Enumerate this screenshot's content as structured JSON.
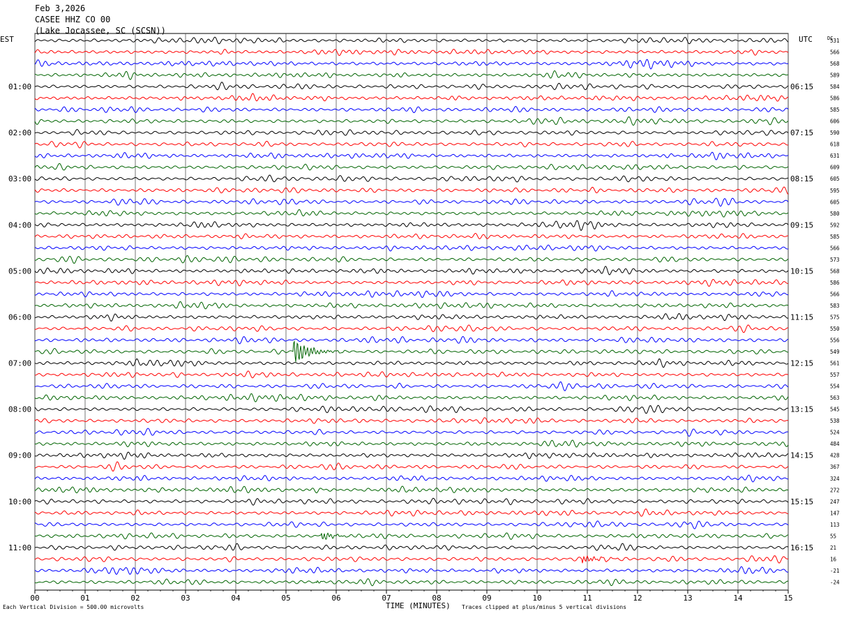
{
  "header": {
    "date": "Feb 3,2026",
    "station": "CASEE HHZ CO 00",
    "location": "(Lake Jocassee, SC (SCSN))"
  },
  "chart_data": {
    "type": "line",
    "title": "Feb 3,2026",
    "xlabel": "TIME (MINUTES)",
    "left_axis_label": "EST",
    "right_axis_label": "UTC",
    "dc_label": "DC",
    "xlim": [
      0,
      15
    ],
    "x_ticks": [
      "00",
      "01",
      "02",
      "03",
      "04",
      "05",
      "06",
      "07",
      "08",
      "09",
      "10",
      "11",
      "12",
      "13",
      "14",
      "15"
    ],
    "grid": true,
    "trace_colors": [
      "#000000",
      "#ff0000",
      "#0000ff",
      "#006400"
    ],
    "est_hour_labels": [
      "01:00",
      "02:00",
      "03:00",
      "04:00",
      "05:00",
      "06:00",
      "07:00",
      "08:00",
      "09:00",
      "10:00",
      "11:00"
    ],
    "utc_hour_labels": [
      "06:15",
      "07:15",
      "08:15",
      "09:15",
      "10:15",
      "11:15",
      "12:15",
      "13:15",
      "14:15",
      "15:15",
      "16:15"
    ],
    "dc_offsets": [
      531,
      566,
      568,
      589,
      584,
      586,
      585,
      606,
      590,
      618,
      631,
      609,
      605,
      595,
      605,
      580,
      592,
      585,
      566,
      573,
      568,
      586,
      566,
      583,
      575,
      550,
      556,
      549,
      561,
      557,
      554,
      563,
      545,
      538,
      524,
      484,
      428,
      367,
      324,
      272,
      247,
      147,
      113,
      55,
      21,
      16,
      -21,
      -24
    ],
    "events": [
      {
        "trace": 27,
        "x_min": 5.15,
        "duration_min": 1.2,
        "amp": 4.5
      },
      {
        "trace": 43,
        "x_min": 5.7,
        "duration_min": 0.8,
        "amp": 1.8
      },
      {
        "trace": 45,
        "x_min": 10.9,
        "duration_min": 1.1,
        "amp": 1.3
      },
      {
        "trace": 47,
        "x_min": 5.6,
        "duration_min": 0.4,
        "amp": 0.6
      }
    ]
  },
  "footer": {
    "scale_note": "Each Vertical Division =  500.00 microvolts",
    "clip_note": "Traces clipped at plus/minus 5 vertical divisions"
  }
}
